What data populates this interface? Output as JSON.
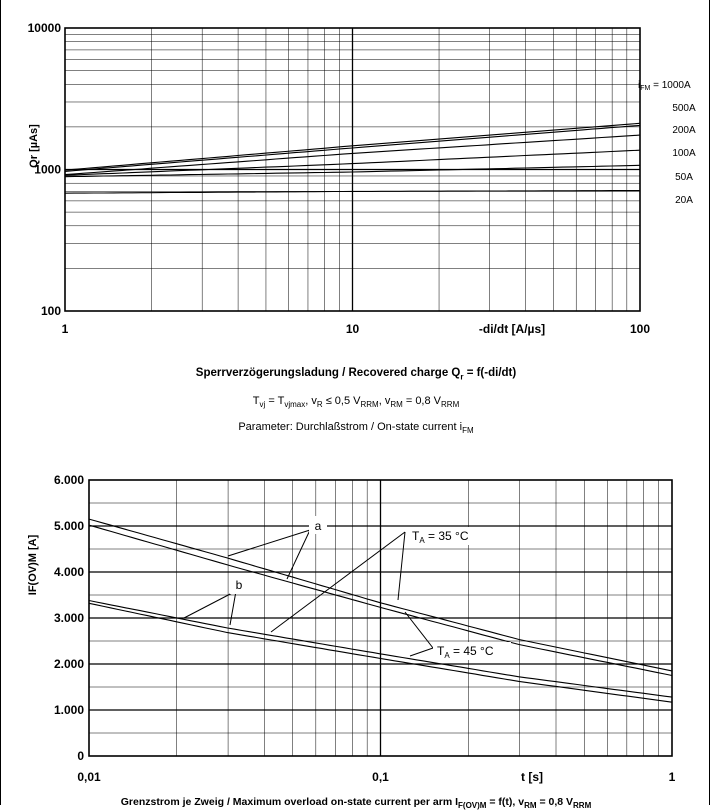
{
  "chart_data": [
    {
      "type": "line",
      "xscale": "log",
      "yscale": "log",
      "xlim": [
        1,
        100
      ],
      "ylim": [
        100,
        10000
      ],
      "x_ticks": [
        "1",
        "10",
        "100"
      ],
      "y_ticks": [
        "100",
        "1000",
        "10000"
      ],
      "xlabel": "-di/dt [A/µs]",
      "ylabel": "Qr [µAs]",
      "grid": true,
      "series": [
        {
          "name": "iFM = 1000A",
          "x": [
            1,
            10,
            100
          ],
          "y": [
            990,
            1470,
            2120
          ]
        },
        {
          "name": "500A",
          "x": [
            1,
            10,
            100
          ],
          "y": [
            970,
            1420,
            2050
          ]
        },
        {
          "name": "200A",
          "x": [
            1,
            10,
            100
          ],
          "y": [
            920,
            1300,
            1750
          ]
        },
        {
          "name": "100A",
          "x": [
            1,
            10,
            100
          ],
          "y": [
            910,
            1100,
            1370
          ]
        },
        {
          "name": "50A",
          "x": [
            1,
            10,
            100
          ],
          "y": [
            890,
            960,
            1070
          ]
        },
        {
          "name": "20A",
          "x": [
            1,
            10,
            100
          ],
          "y": [
            680,
            700,
            710
          ]
        }
      ],
      "caption": {
        "title_pre": "Sperrverzögerungsladung / Recovered charge Q",
        "title_sub": "r",
        "title_post": " = f(-di/dt)",
        "cond": [
          {
            "t": "T"
          },
          {
            "t": "vj",
            "sub": true
          },
          {
            "t": " = T"
          },
          {
            "t": "vjmax",
            "sub": true
          },
          {
            "t": ", v"
          },
          {
            "t": "R",
            "sub": true
          },
          {
            "t": " ≤ 0,5 V"
          },
          {
            "t": "RRM",
            "sub": true
          },
          {
            "t": ", v"
          },
          {
            "t": "RM",
            "sub": true
          },
          {
            "t": " = 0,8 V"
          },
          {
            "t": "RRM",
            "sub": true
          }
        ],
        "param_pre": "Parameter: Durchlaßstrom / On-state current i",
        "param_sub": "FM"
      }
    },
    {
      "type": "line",
      "xscale": "log",
      "yscale": "linear",
      "xlim": [
        0.01,
        1
      ],
      "ylim": [
        0,
        6000
      ],
      "x_ticks": [
        "0,01",
        "0,1",
        "1"
      ],
      "y_ticks": [
        "0",
        "1.000",
        "2.000",
        "3.000",
        "4.000",
        "5.000",
        "6.000"
      ],
      "xlabel": "t [s]",
      "ylabel": "IF(OV)M [A]",
      "grid": true,
      "series": [
        {
          "name": "a, TA = 35 °C",
          "x": [
            0.01,
            0.03,
            0.1,
            0.3,
            1
          ],
          "y": [
            5150,
            4300,
            3330,
            2530,
            1850
          ]
        },
        {
          "name": "a, TA = 45 °C",
          "x": [
            0.01,
            0.03,
            0.1,
            0.3,
            1
          ],
          "y": [
            5020,
            4150,
            3230,
            2420,
            1750
          ]
        },
        {
          "name": "b, TA = 35 °C",
          "x": [
            0.01,
            0.03,
            0.1,
            0.3,
            1
          ],
          "y": [
            3380,
            2780,
            2220,
            1720,
            1280
          ]
        },
        {
          "name": "b, TA = 45 °C",
          "x": [
            0.01,
            0.03,
            0.1,
            0.3,
            1
          ],
          "y": [
            3320,
            2680,
            2120,
            1620,
            1170
          ]
        }
      ],
      "annotations": [
        "a",
        "b",
        "TA = 35 °C",
        "TA = 45 °C"
      ],
      "caption": {
        "title_pre": "Grenzstrom je Zweig / Maximum overload on-state current per arm I",
        "title_sub": "F(OV)M",
        "title_post": " = f(t), v",
        "title_sub2": "RM",
        "title_post2": " = 0,8 V",
        "title_sub3": "RRM"
      }
    }
  ]
}
